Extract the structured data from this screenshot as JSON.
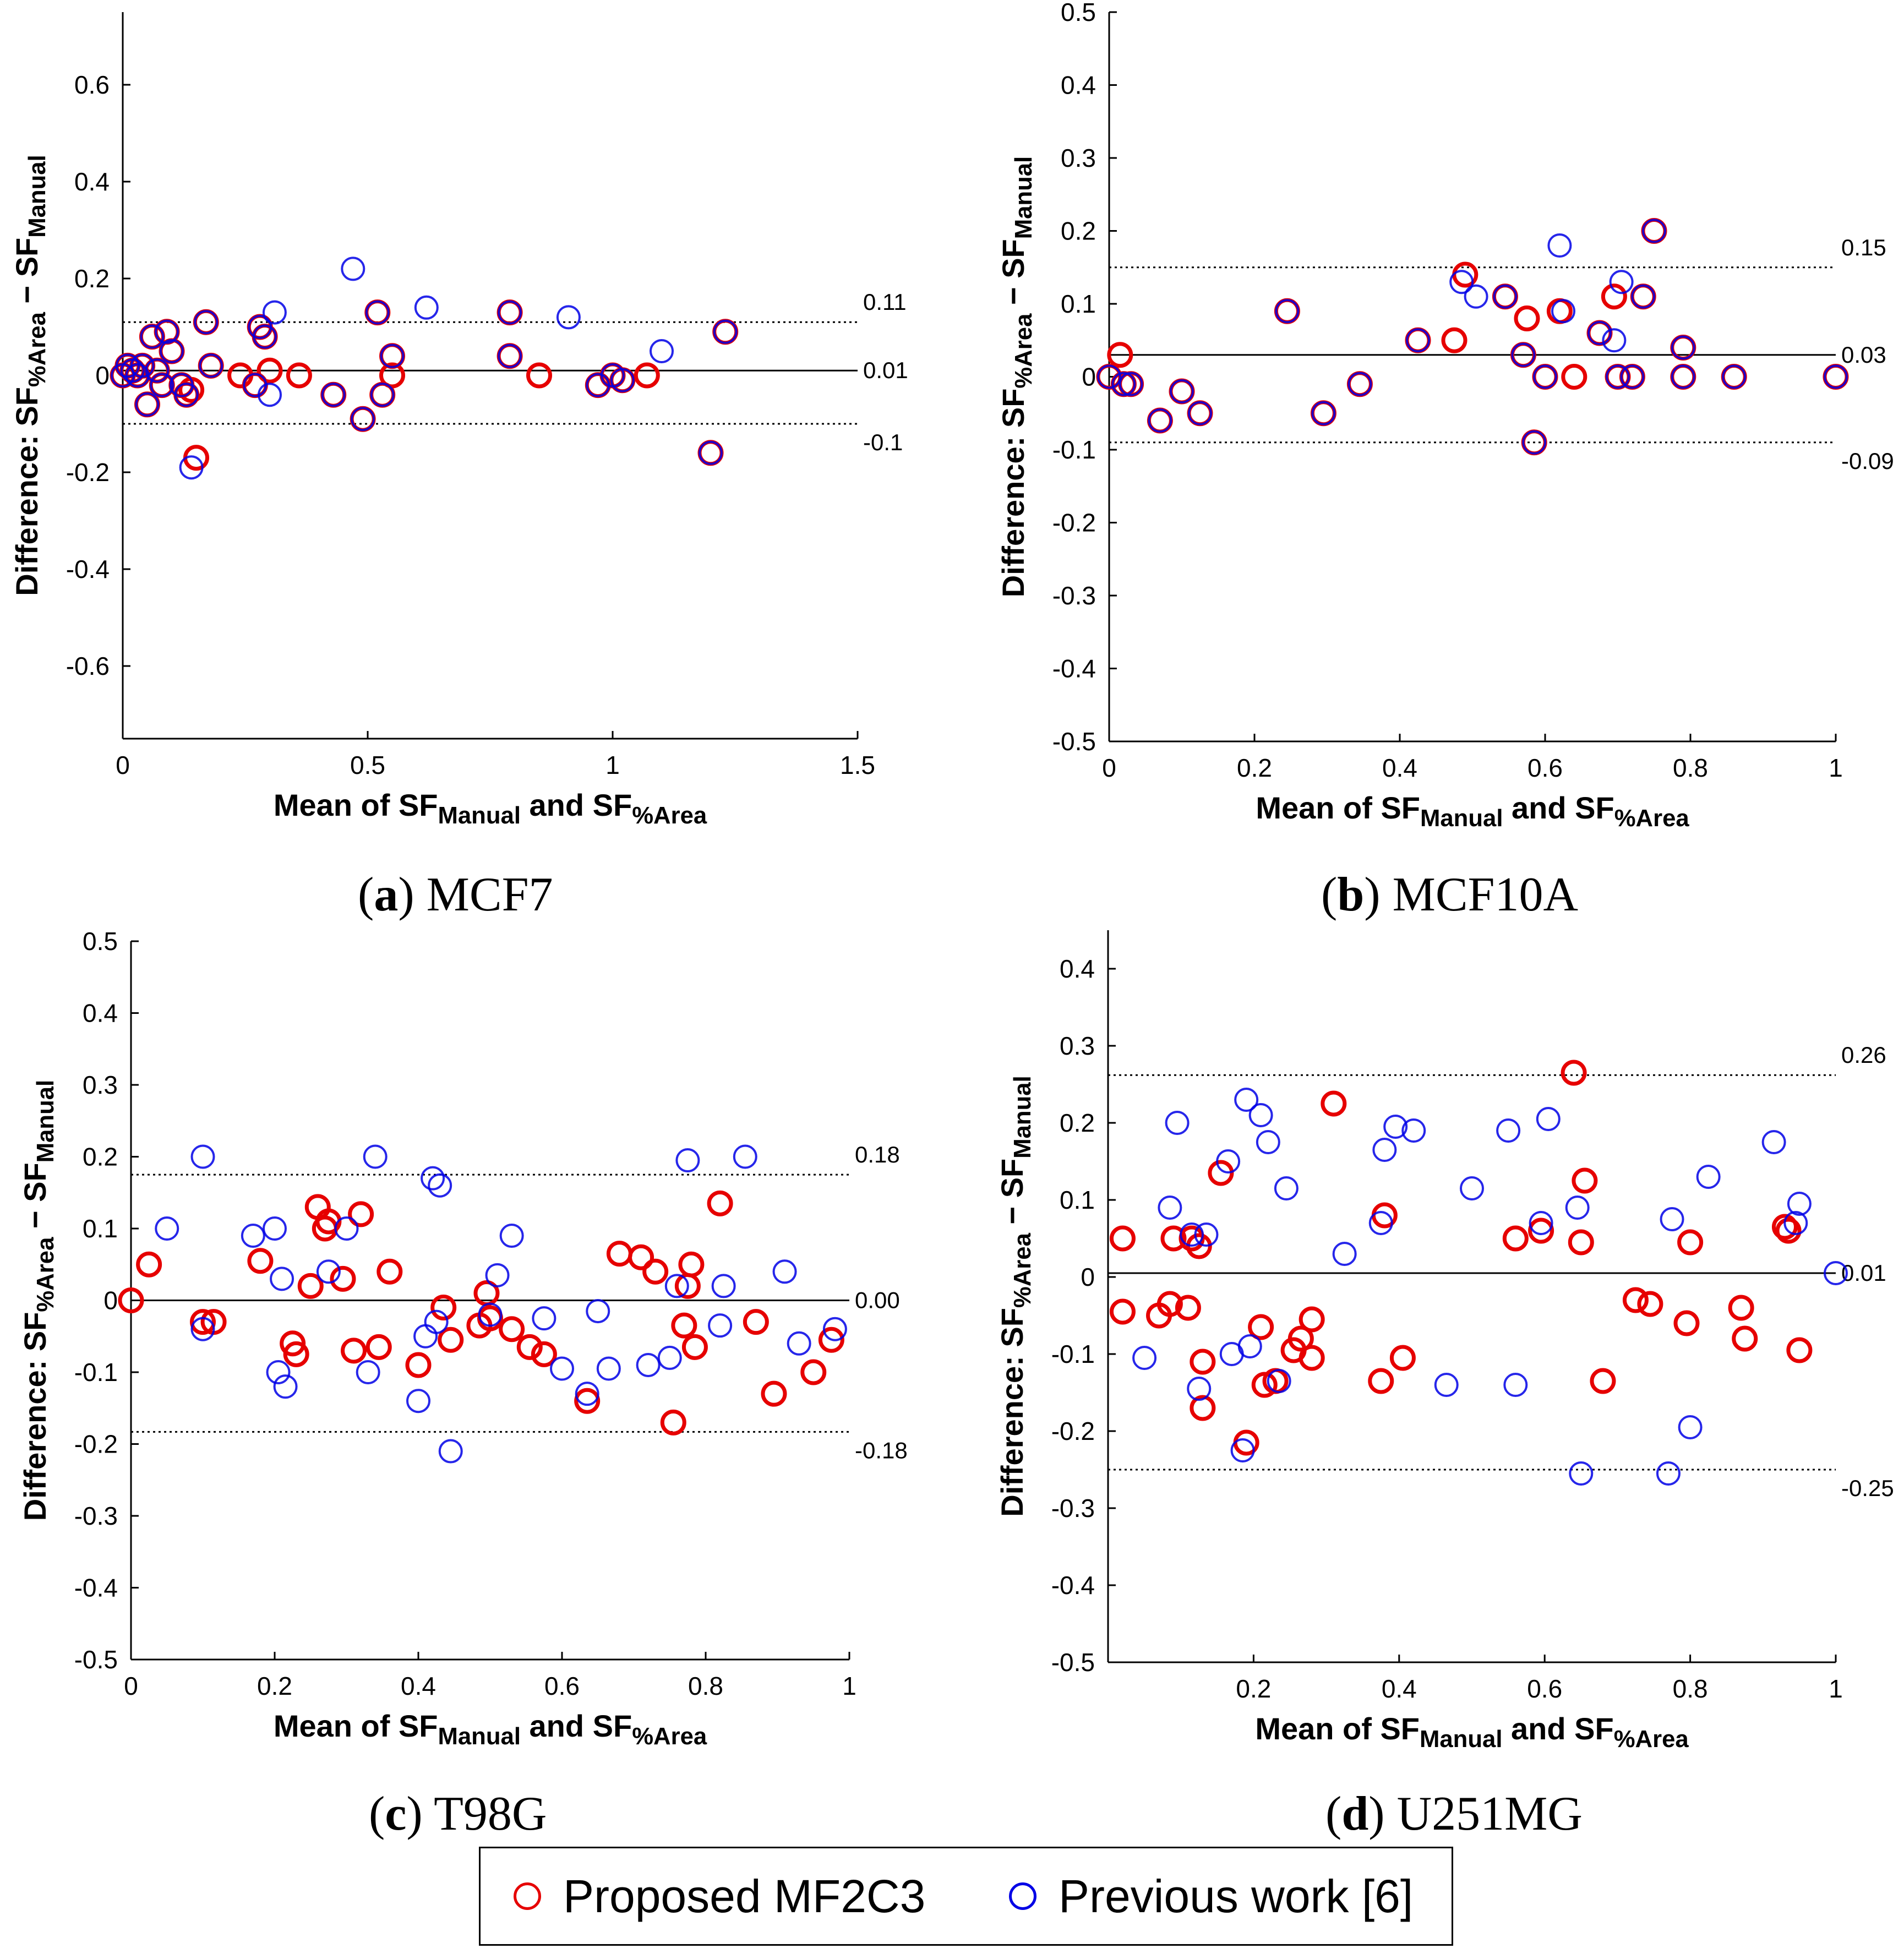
{
  "colors": {
    "proposed": "#e60000",
    "previous": "#0000e6",
    "line": "#000000"
  },
  "legend": {
    "proposed_label": "Proposed MF2C3",
    "previous_label": "Previous work [6]"
  },
  "captions": {
    "a": {
      "letter": "a",
      "name": "MCF7"
    },
    "b": {
      "letter": "b",
      "name": "MCF10A"
    },
    "c": {
      "letter": "c",
      "name": "T98G"
    },
    "d": {
      "letter": "d",
      "name": "U251MG"
    }
  },
  "chart_data": [
    {
      "type": "scatter",
      "title": "MCF7",
      "xlabel": "Mean of SF_Manual and SF_%Area",
      "ylabel": "Difference: SF_%Area − SF_Manual",
      "xlim": [
        0,
        1.5
      ],
      "ylim": [
        -0.75,
        0.75
      ],
      "xticks": [
        0,
        0.5,
        1,
        1.5
      ],
      "xtick_labels": [
        "0",
        "0.5",
        "1",
        "1.5"
      ],
      "yticks": [
        -0.6,
        -0.4,
        -0.2,
        0,
        0.2,
        0.4,
        0.6
      ],
      "ytick_labels": [
        "-0.6",
        "-0.4",
        "-0.2",
        "0",
        "0.2",
        "0.4",
        "0.6"
      ],
      "mean_line": {
        "value": 0.01,
        "label": "0.01"
      },
      "upper_loa": {
        "value": 0.11,
        "label": "0.11"
      },
      "lower_loa": {
        "value": -0.1,
        "label": "-0.1"
      },
      "series": [
        {
          "name": "Proposed MF2C3",
          "color": "#e60000",
          "x": [
            0,
            0.01,
            0.02,
            0.03,
            0.04,
            0.05,
            0.06,
            0.07,
            0.08,
            0.09,
            0.1,
            0.12,
            0.13,
            0.14,
            0.15,
            0.17,
            0.18,
            0.24,
            0.27,
            0.28,
            0.29,
            0.3,
            0.36,
            0.43,
            0.49,
            0.52,
            0.53,
            0.55,
            0.55,
            0.79,
            0.79,
            0.85,
            0.97,
            1.0,
            1.02,
            1.07,
            1.2,
            1.23
          ],
          "y": [
            0,
            0.02,
            0.01,
            0,
            0.02,
            -0.06,
            0.08,
            0.01,
            -0.02,
            0.09,
            0.05,
            -0.02,
            -0.04,
            -0.03,
            -0.17,
            0.11,
            0.02,
            0,
            -0.02,
            0.1,
            0.08,
            0.01,
            0,
            -0.04,
            -0.09,
            0.13,
            -0.04,
            0.04,
            0,
            0.13,
            0.04,
            0,
            -0.02,
            0,
            -0.01,
            0,
            -0.16,
            0.09
          ]
        },
        {
          "name": "Previous work [6]",
          "color": "#0000e6",
          "x": [
            0,
            0.01,
            0.02,
            0.03,
            0.04,
            0.05,
            0.06,
            0.07,
            0.08,
            0.09,
            0.1,
            0.12,
            0.13,
            0.14,
            0.17,
            0.18,
            0.27,
            0.28,
            0.29,
            0.3,
            0.31,
            0.43,
            0.47,
            0.49,
            0.52,
            0.53,
            0.55,
            0.62,
            0.79,
            0.79,
            0.91,
            0.97,
            1.0,
            1.02,
            1.1,
            1.2,
            1.23
          ],
          "y": [
            0,
            0.02,
            0.01,
            0,
            0.02,
            -0.06,
            0.08,
            0.01,
            -0.02,
            0.09,
            0.05,
            -0.02,
            -0.04,
            -0.19,
            0.11,
            0.02,
            -0.02,
            0.1,
            0.08,
            -0.04,
            0.13,
            -0.04,
            0.22,
            -0.09,
            0.13,
            -0.04,
            0.04,
            0.14,
            0.13,
            0.04,
            0.12,
            -0.02,
            0,
            -0.01,
            0.05,
            -0.16,
            0.09
          ]
        }
      ]
    },
    {
      "type": "scatter",
      "title": "MCF10A",
      "xlabel": "Mean of SF_Manual and SF_%Area",
      "ylabel": "Difference: SF_%Area − SF_Manual",
      "xlim": [
        0,
        1
      ],
      "ylim": [
        -0.5,
        0.5
      ],
      "xticks": [
        0,
        0.2,
        0.4,
        0.6,
        0.8,
        1
      ],
      "xtick_labels": [
        "0",
        "0.2",
        "0.4",
        "0.6",
        "0.8",
        "1"
      ],
      "yticks": [
        -0.5,
        -0.4,
        -0.3,
        -0.2,
        -0.1,
        0,
        0.1,
        0.2,
        0.3,
        0.4,
        0.5
      ],
      "ytick_labels": [
        "-0.5",
        "-0.4",
        "-0.3",
        "-0.2",
        "-0.1",
        "0",
        "0.1",
        "0.2",
        "0.3",
        "0.4",
        "0.5"
      ],
      "mean_line": {
        "value": 0.03,
        "label": "0.03"
      },
      "upper_loa": {
        "value": 0.15,
        "label": "0.15"
      },
      "lower_loa": {
        "value": -0.09,
        "label": "-0.09"
      },
      "series": [
        {
          "name": "Proposed MF2C3",
          "color": "#e60000",
          "x": [
            0,
            0.015,
            0.02,
            0.03,
            0.07,
            0.1,
            0.125,
            0.245,
            0.295,
            0.345,
            0.425,
            0.475,
            0.49,
            0.545,
            0.57,
            0.575,
            0.585,
            0.6,
            0.62,
            0.64,
            0.675,
            0.695,
            0.7,
            0.72,
            0.735,
            0.75,
            0.79,
            0.79,
            0.86,
            1.0
          ],
          "y": [
            0,
            0.03,
            -0.01,
            -0.01,
            -0.06,
            -0.02,
            -0.05,
            0.09,
            -0.05,
            -0.01,
            0.05,
            0.05,
            0.14,
            0.11,
            0.03,
            0.08,
            -0.09,
            0,
            0.09,
            0,
            0.06,
            0.11,
            0,
            0,
            0.11,
            0.2,
            0.04,
            0,
            0,
            0
          ]
        },
        {
          "name": "Previous work [6]",
          "color": "#0000e6",
          "x": [
            0,
            0.02,
            0.03,
            0.07,
            0.1,
            0.125,
            0.245,
            0.295,
            0.345,
            0.425,
            0.485,
            0.505,
            0.545,
            0.57,
            0.585,
            0.6,
            0.62,
            0.625,
            0.675,
            0.695,
            0.7,
            0.705,
            0.72,
            0.735,
            0.75,
            0.79,
            0.79,
            0.86,
            1.0
          ],
          "y": [
            0,
            -0.01,
            -0.01,
            -0.06,
            -0.02,
            -0.05,
            0.09,
            -0.05,
            -0.01,
            0.05,
            0.13,
            0.11,
            0.11,
            0.03,
            -0.09,
            0,
            0.18,
            0.09,
            0.06,
            0.05,
            0,
            0.13,
            0,
            0.11,
            0.2,
            0.04,
            0,
            0,
            0
          ]
        }
      ]
    },
    {
      "type": "scatter",
      "title": "T98G",
      "xlabel": "Mean of SF_Manual and SF_%Area",
      "ylabel": "Difference: SF_%Area − SF_Manual",
      "xlim": [
        0,
        1
      ],
      "ylim": [
        -0.5,
        0.5
      ],
      "xticks": [
        0,
        0.2,
        0.4,
        0.6,
        0.8,
        1
      ],
      "xtick_labels": [
        "0",
        "0.2",
        "0.4",
        "0.6",
        "0.8",
        "1"
      ],
      "yticks": [
        -0.5,
        -0.4,
        -0.3,
        -0.2,
        -0.1,
        0,
        0.1,
        0.2,
        0.3,
        0.4,
        0.5
      ],
      "ytick_labels": [
        "-0.5",
        "-0.4",
        "-0.3",
        "-0.2",
        "-0.1",
        "0",
        "0.1",
        "0.2",
        "0.3",
        "0.4",
        "0.5"
      ],
      "mean_line": {
        "value": 0.0,
        "label": "0.00"
      },
      "upper_loa": {
        "value": 0.175,
        "label": "0.18"
      },
      "lower_loa": {
        "value": -0.183,
        "label": "-0.18"
      },
      "series": [
        {
          "name": "Proposed MF2C3",
          "color": "#e60000",
          "x": [
            0,
            0.025,
            0.1,
            0.115,
            0.18,
            0.225,
            0.23,
            0.25,
            0.26,
            0.27,
            0.275,
            0.295,
            0.31,
            0.32,
            0.345,
            0.36,
            0.4,
            0.435,
            0.445,
            0.485,
            0.495,
            0.5,
            0.53,
            0.555,
            0.575,
            0.635,
            0.68,
            0.71,
            0.73,
            0.755,
            0.77,
            0.775,
            0.78,
            0.785,
            0.82,
            0.87,
            0.895,
            0.95,
            0.975
          ],
          "y": [
            0,
            0.05,
            -0.03,
            -0.03,
            0.055,
            -0.06,
            -0.075,
            0.02,
            0.13,
            0.1,
            0.11,
            0.03,
            -0.07,
            0.12,
            -0.065,
            0.04,
            -0.09,
            -0.01,
            -0.055,
            -0.035,
            0.01,
            -0.025,
            -0.04,
            -0.065,
            -0.075,
            -0.14,
            0.065,
            0.06,
            0.04,
            -0.17,
            -0.035,
            0.02,
            0.05,
            -0.065,
            0.135,
            -0.03,
            -0.13,
            -0.1,
            -0.055
          ]
        },
        {
          "name": "Previous work [6]",
          "color": "#0000e6",
          "x": [
            0.05,
            0.1,
            0.1,
            0.17,
            0.2,
            0.205,
            0.21,
            0.215,
            0.275,
            0.3,
            0.33,
            0.34,
            0.4,
            0.41,
            0.42,
            0.425,
            0.43,
            0.445,
            0.5,
            0.51,
            0.53,
            0.575,
            0.6,
            0.635,
            0.65,
            0.665,
            0.72,
            0.75,
            0.76,
            0.775,
            0.82,
            0.825,
            0.855,
            0.91,
            0.93,
            0.98
          ],
          "y": [
            0.1,
            0.2,
            -0.04,
            0.09,
            0.1,
            -0.1,
            0.03,
            -0.12,
            0.04,
            0.1,
            -0.1,
            0.2,
            -0.14,
            -0.05,
            0.17,
            -0.03,
            0.16,
            -0.21,
            -0.02,
            0.035,
            0.09,
            -0.025,
            -0.095,
            -0.13,
            -0.015,
            -0.095,
            -0.09,
            -0.08,
            0.02,
            0.195,
            -0.035,
            0.02,
            0.2,
            0.04,
            -0.06,
            -0.04
          ]
        }
      ]
    },
    {
      "type": "scatter",
      "title": "U251MG",
      "xlabel": "Mean of SF_Manual and SF_%Area",
      "ylabel": "Difference: SF_%Area − SF_Manual",
      "xlim": [
        0,
        1
      ],
      "ylim": [
        -0.5,
        0.45
      ],
      "xticks": [
        0.2,
        0.4,
        0.6,
        0.8,
        1
      ],
      "xtick_labels": [
        "0.2",
        "0.4",
        "0.6",
        "0.8",
        "1"
      ],
      "yticks": [
        -0.5,
        -0.4,
        -0.3,
        -0.2,
        -0.1,
        0,
        0.1,
        0.2,
        0.3,
        0.4
      ],
      "ytick_labels": [
        "-0.5",
        "-0.4",
        "-0.3",
        "-0.2",
        "-0.1",
        "0",
        "0.1",
        "0.2",
        "0.3",
        "0.4"
      ],
      "mean_line": {
        "value": 0.005,
        "label": "0.01"
      },
      "upper_loa": {
        "value": 0.262,
        "label": "0.26"
      },
      "lower_loa": {
        "value": -0.25,
        "label": "-0.25"
      },
      "series": [
        {
          "name": "Proposed MF2C3",
          "color": "#e60000",
          "x": [
            0.02,
            0.02,
            0.07,
            0.085,
            0.09,
            0.11,
            0.115,
            0.125,
            0.13,
            0.13,
            0.155,
            0.19,
            0.21,
            0.215,
            0.23,
            0.255,
            0.265,
            0.28,
            0.28,
            0.31,
            0.375,
            0.38,
            0.405,
            0.56,
            0.595,
            0.64,
            0.65,
            0.655,
            0.68,
            0.725,
            0.745,
            0.795,
            0.8,
            0.87,
            0.875,
            0.93,
            0.935,
            0.95
          ],
          "y": [
            0.05,
            -0.045,
            -0.05,
            -0.035,
            0.05,
            -0.04,
            0.05,
            0.04,
            -0.11,
            -0.17,
            0.135,
            -0.215,
            -0.065,
            -0.14,
            -0.135,
            -0.095,
            -0.08,
            -0.055,
            -0.105,
            0.225,
            -0.135,
            0.08,
            -0.105,
            0.05,
            0.06,
            0.265,
            0.045,
            0.125,
            -0.135,
            -0.03,
            -0.035,
            -0.06,
            0.045,
            -0.04,
            -0.08,
            0.065,
            0.06,
            -0.095
          ]
        },
        {
          "name": "Previous work [6]",
          "color": "#0000e6",
          "x": [
            0.05,
            0.085,
            0.095,
            0.115,
            0.125,
            0.135,
            0.165,
            0.17,
            0.185,
            0.19,
            0.195,
            0.21,
            0.22,
            0.235,
            0.245,
            0.325,
            0.375,
            0.38,
            0.395,
            0.42,
            0.465,
            0.5,
            0.55,
            0.56,
            0.595,
            0.605,
            0.645,
            0.65,
            0.77,
            0.775,
            0.8,
            0.825,
            0.915,
            0.945,
            0.95,
            1.0
          ],
          "y": [
            -0.105,
            0.09,
            0.2,
            0.055,
            -0.145,
            0.055,
            0.15,
            -0.1,
            -0.225,
            0.23,
            -0.09,
            0.21,
            0.175,
            -0.135,
            0.115,
            0.03,
            0.07,
            0.165,
            0.195,
            0.19,
            -0.14,
            0.115,
            0.19,
            -0.14,
            0.07,
            0.205,
            0.09,
            -0.255,
            -0.255,
            0.075,
            -0.195,
            0.13,
            0.175,
            0.07,
            0.095,
            0.005
          ]
        }
      ]
    }
  ]
}
